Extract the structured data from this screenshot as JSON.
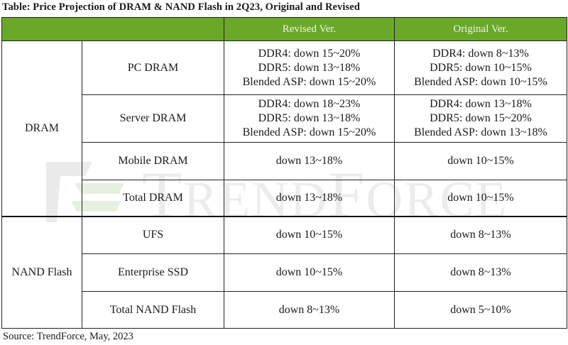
{
  "title": "Table: Price Projection of DRAM & NAND Flash in 2Q23, Original and Revised",
  "header": {
    "blank": "",
    "revised": "Revised Ver.",
    "original": "Original Ver."
  },
  "groups": [
    {
      "name": "DRAM",
      "rows": [
        {
          "product": "PC DRAM",
          "revised": [
            "DDR4: down 15~20%",
            "DDR5: down 13~18%",
            "Blended ASP: down 15~20%"
          ],
          "original": [
            "DDR4: down 8~13%",
            "DDR5: down 10~15%",
            "Blended ASP: down 10~15%"
          ]
        },
        {
          "product": "Server DRAM",
          "revised": [
            "DDR4: down 18~23%",
            "DDR5: down 13~18%",
            "Blended ASP: down 15~20%"
          ],
          "original": [
            "DDR4: down 13~18%",
            "DDR5: down 15~20%",
            "Blended ASP: down 13~18%"
          ]
        },
        {
          "product": "Mobile DRAM",
          "revised": [
            "down 13~18%"
          ],
          "original": [
            "down 10~15%"
          ]
        },
        {
          "product": "Total DRAM",
          "revised": [
            "down 13~18%"
          ],
          "original": [
            "down 10~15%"
          ]
        }
      ]
    },
    {
      "name": "NAND Flash",
      "rows": [
        {
          "product": "UFS",
          "revised": [
            "down 10~15%"
          ],
          "original": [
            "down 8~13%"
          ]
        },
        {
          "product": "Enterprise SSD",
          "revised": [
            "down 10~15%"
          ],
          "original": [
            "down 8~13%"
          ]
        },
        {
          "product": "Total NAND Flash",
          "revised": [
            "down 8~13%"
          ],
          "original": [
            "down 5~10%"
          ]
        }
      ]
    }
  ],
  "source": "Source: TrendForce, May, 2023",
  "watermark": "TRENDFORCE",
  "colors": {
    "header_bg": "#6aa829",
    "header_text": "#eef5e2"
  }
}
